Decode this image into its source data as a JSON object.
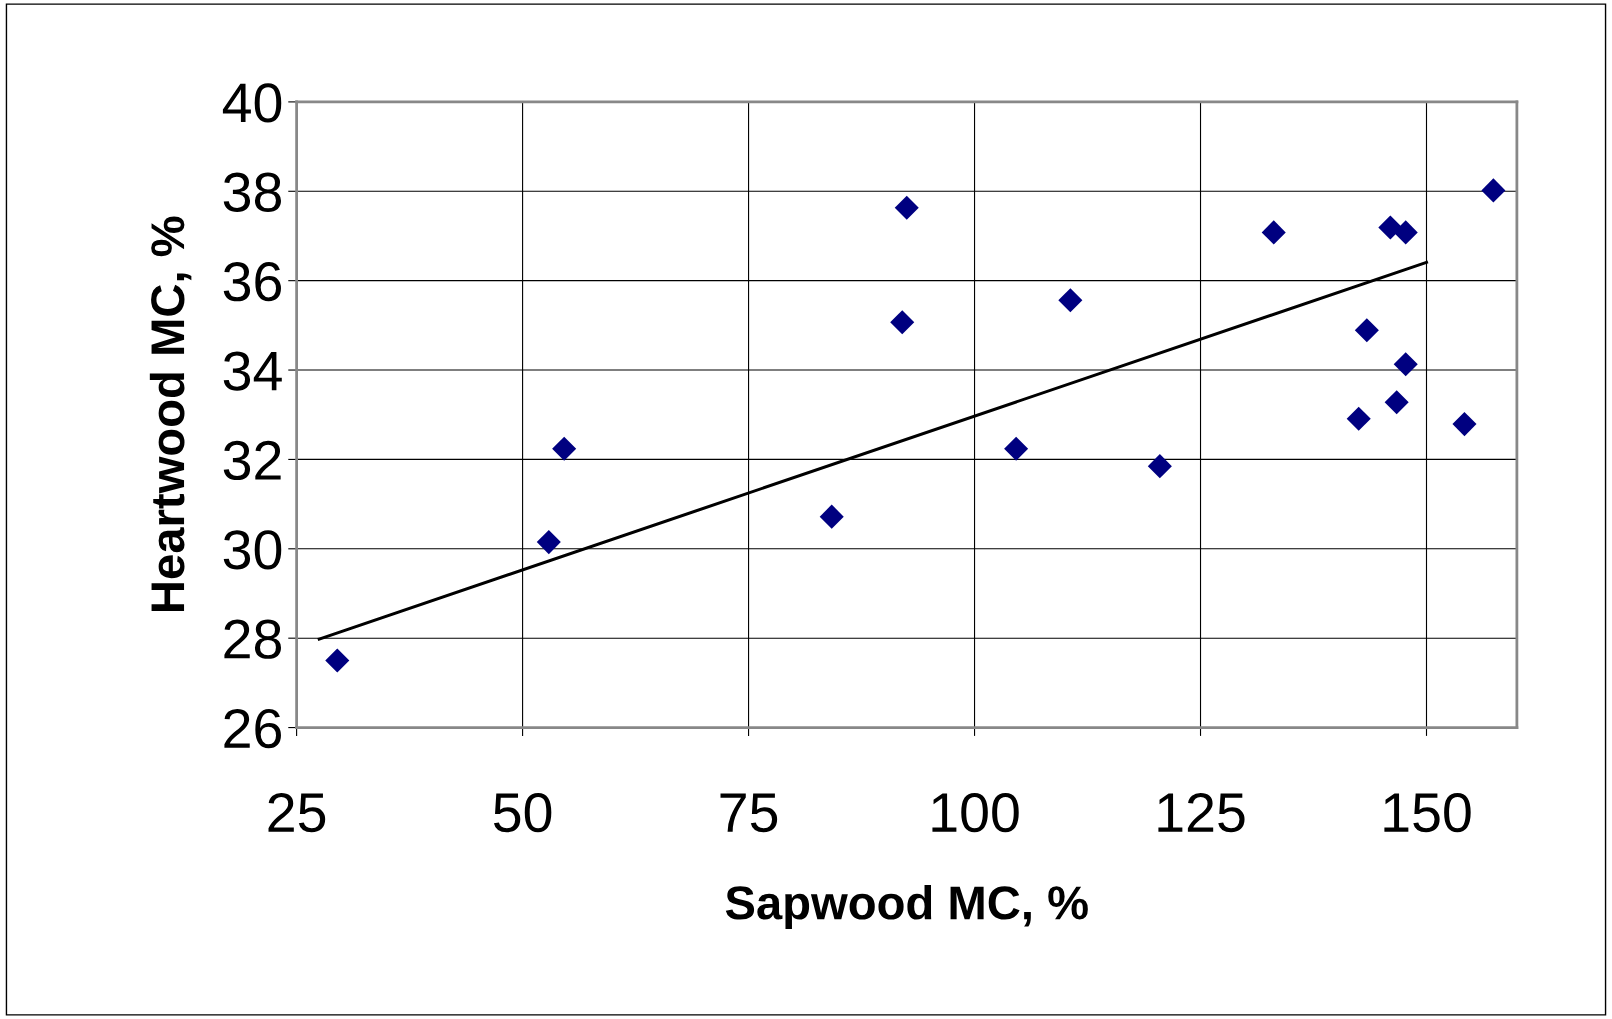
{
  "chart_data": {
    "type": "scatter",
    "xlabel": "Sapwood MC, %",
    "ylabel": "Heartwood MC, %",
    "xlim": [
      25,
      160
    ],
    "xticks": [
      25,
      50,
      75,
      100,
      125,
      150
    ],
    "ylim": [
      26,
      40
    ],
    "yticks": [
      26,
      28,
      30,
      32,
      34,
      36,
      38,
      40
    ],
    "grid": true,
    "series": [
      {
        "marker": "diamond",
        "color": "#000080",
        "x": [
          29.5,
          52.9,
          54.6,
          84.2,
          92.0,
          92.5,
          104.6,
          110.6,
          120.5,
          133.1,
          142.5,
          143.4,
          146.0,
          147.7,
          146.7,
          147.7,
          154.2,
          157.4
        ],
        "values": [
          27.5,
          30.15,
          32.24,
          30.72,
          35.07,
          37.63,
          32.24,
          35.56,
          31.85,
          37.08,
          32.91,
          34.89,
          37.19,
          37.08,
          33.28,
          34.13,
          32.79,
          38.02
        ]
      },
      {
        "type": "line",
        "marker": "none",
        "color": "#000000",
        "x": [
          27.5,
          150
        ],
        "values": [
          27.98,
          36.41
        ]
      }
    ]
  }
}
